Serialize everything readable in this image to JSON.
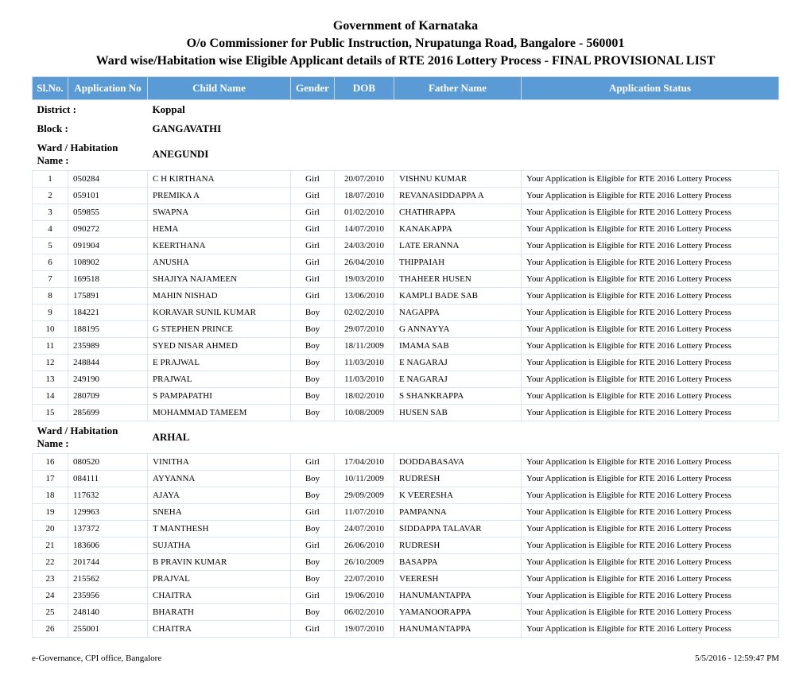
{
  "header": {
    "title1": "Government of Karnataka",
    "title2": "O/o Commissioner for Public Instruction, Nrupatunga Road, Bangalore - 560001",
    "title3": "Ward wise/Habitation wise Eligible Applicant details of RTE 2016 Lottery Process - FINAL PROVISIONAL LIST"
  },
  "columns": {
    "sl": "Sl.No.",
    "app": "Application No",
    "name": "Child Name",
    "gender": "Gender",
    "dob": "DOB",
    "father": "Father Name",
    "status": "Application Status"
  },
  "labels": {
    "district": "District :",
    "block": "Block :",
    "ward": "Ward / Habitation Name :"
  },
  "district": "Koppal",
  "block": "GANGAVATHI",
  "wards": [
    {
      "name": "ANEGUNDI",
      "rows": [
        {
          "sl": "1",
          "app": "050284",
          "name": "C H KIRTHANA",
          "gender": "Girl",
          "dob": "20/07/2010",
          "father": "VISHNU KUMAR",
          "status": "Your Application is Eligible for RTE 2016 Lottery Process"
        },
        {
          "sl": "2",
          "app": "059101",
          "name": "PREMIKA A",
          "gender": "Girl",
          "dob": "18/07/2010",
          "father": "REVANASIDDAPPA A",
          "status": "Your Application is Eligible for RTE 2016 Lottery Process"
        },
        {
          "sl": "3",
          "app": "059855",
          "name": "SWAPNA",
          "gender": "Girl",
          "dob": "01/02/2010",
          "father": "CHATHRAPPA",
          "status": "Your Application is Eligible for RTE 2016 Lottery Process"
        },
        {
          "sl": "4",
          "app": "090272",
          "name": "HEMA",
          "gender": "Girl",
          "dob": "14/07/2010",
          "father": "KANAKAPPA",
          "status": "Your Application is Eligible for RTE 2016 Lottery Process"
        },
        {
          "sl": "5",
          "app": "091904",
          "name": "KEERTHANA",
          "gender": "Girl",
          "dob": "24/03/2010",
          "father": "LATE ERANNA",
          "status": "Your Application is Eligible for RTE 2016 Lottery Process"
        },
        {
          "sl": "6",
          "app": "108902",
          "name": "ANUSHA",
          "gender": "Girl",
          "dob": "26/04/2010",
          "father": "THIPPAIAH",
          "status": "Your Application is Eligible for RTE 2016 Lottery Process"
        },
        {
          "sl": "7",
          "app": "169518",
          "name": "SHAJIYA NAJAMEEN",
          "gender": "Girl",
          "dob": "19/03/2010",
          "father": "THAHEER HUSEN",
          "status": "Your Application is Eligible for RTE 2016 Lottery Process"
        },
        {
          "sl": "8",
          "app": "175891",
          "name": "MAHIN NISHAD",
          "gender": "Girl",
          "dob": "13/06/2010",
          "father": "KAMPLI BADE SAB",
          "status": "Your Application is Eligible for RTE 2016 Lottery Process"
        },
        {
          "sl": "9",
          "app": "184221",
          "name": "KORAVAR SUNIL KUMAR",
          "gender": "Boy",
          "dob": "02/02/2010",
          "father": "NAGAPPA",
          "status": "Your Application is Eligible for RTE 2016 Lottery Process"
        },
        {
          "sl": "10",
          "app": "188195",
          "name": "G STEPHEN PRINCE",
          "gender": "Boy",
          "dob": "29/07/2010",
          "father": "G ANNAYYA",
          "status": "Your Application is Eligible for RTE 2016 Lottery Process"
        },
        {
          "sl": "11",
          "app": "235989",
          "name": "SYED NISAR AHMED",
          "gender": "Boy",
          "dob": "18/11/2009",
          "father": "IMAMA SAB",
          "status": "Your Application is Eligible for RTE 2016 Lottery Process"
        },
        {
          "sl": "12",
          "app": "248844",
          "name": "E PRAJWAL",
          "gender": "Boy",
          "dob": "11/03/2010",
          "father": "E NAGARAJ",
          "status": "Your Application is Eligible for RTE 2016 Lottery Process"
        },
        {
          "sl": "13",
          "app": "249190",
          "name": "PRAJWAL",
          "gender": "Boy",
          "dob": "11/03/2010",
          "father": "E NAGARAJ",
          "status": "Your Application is Eligible for RTE 2016 Lottery Process"
        },
        {
          "sl": "14",
          "app": "280709",
          "name": "S PAMPAPATHI",
          "gender": "Boy",
          "dob": "18/02/2010",
          "father": "S SHANKRAPPA",
          "status": "Your Application is Eligible for RTE 2016 Lottery Process"
        },
        {
          "sl": "15",
          "app": "285699",
          "name": "MOHAMMAD TAMEEM",
          "gender": "Boy",
          "dob": "10/08/2009",
          "father": "HUSEN SAB",
          "status": "Your Application is Eligible for RTE 2016 Lottery Process"
        }
      ]
    },
    {
      "name": "ARHAL",
      "rows": [
        {
          "sl": "16",
          "app": "080520",
          "name": "VINITHA",
          "gender": "Girl",
          "dob": "17/04/2010",
          "father": "DODDABASAVA",
          "status": "Your Application is Eligible for RTE 2016 Lottery Process"
        },
        {
          "sl": "17",
          "app": "084111",
          "name": "AYYANNA",
          "gender": "Boy",
          "dob": "10/11/2009",
          "father": "RUDRESH",
          "status": "Your Application is Eligible for RTE 2016 Lottery Process"
        },
        {
          "sl": "18",
          "app": "117632",
          "name": "AJAYA",
          "gender": "Boy",
          "dob": "29/09/2009",
          "father": "K VEERESHA",
          "status": "Your Application is Eligible for RTE 2016 Lottery Process"
        },
        {
          "sl": "19",
          "app": "129963",
          "name": "SNEHA",
          "gender": "Girl",
          "dob": "11/07/2010",
          "father": "PAMPANNA",
          "status": "Your Application is Eligible for RTE 2016 Lottery Process"
        },
        {
          "sl": "20",
          "app": "137372",
          "name": "T MANTHESH",
          "gender": "Boy",
          "dob": "24/07/2010",
          "father": "SIDDAPPA TALAVAR",
          "status": "Your Application is Eligible for RTE 2016 Lottery Process"
        },
        {
          "sl": "21",
          "app": "183606",
          "name": "SUJATHA",
          "gender": "Girl",
          "dob": "26/06/2010",
          "father": "RUDRESH",
          "status": "Your Application is Eligible for RTE 2016 Lottery Process"
        },
        {
          "sl": "22",
          "app": "201744",
          "name": "B PRAVIN KUMAR",
          "gender": "Boy",
          "dob": "26/10/2009",
          "father": "BASAPPA",
          "status": "Your Application is Eligible for RTE 2016 Lottery Process"
        },
        {
          "sl": "23",
          "app": "215562",
          "name": "PRAJVAL",
          "gender": "Boy",
          "dob": "22/07/2010",
          "father": "VEERESH",
          "status": "Your Application is Eligible for RTE 2016 Lottery Process"
        },
        {
          "sl": "24",
          "app": "235956",
          "name": "CHAITRA",
          "gender": "Girl",
          "dob": "19/06/2010",
          "father": "HANUMANTAPPA",
          "status": "Your Application is Eligible for RTE 2016 Lottery Process"
        },
        {
          "sl": "25",
          "app": "248140",
          "name": "BHARATH",
          "gender": "Boy",
          "dob": "06/02/2010",
          "father": "YAMANOORAPPA",
          "status": "Your Application is Eligible for RTE 2016 Lottery Process"
        },
        {
          "sl": "26",
          "app": "255001",
          "name": "CHAITRA",
          "gender": "Girl",
          "dob": "19/07/2010",
          "father": "HANUMANTAPPA",
          "status": "Your Application is Eligible for RTE 2016 Lottery Process"
        }
      ]
    }
  ],
  "footer": {
    "left": "e-Governance, CPI office, Bangalore",
    "right": "5/5/2016 - 12:59:47 PM"
  }
}
